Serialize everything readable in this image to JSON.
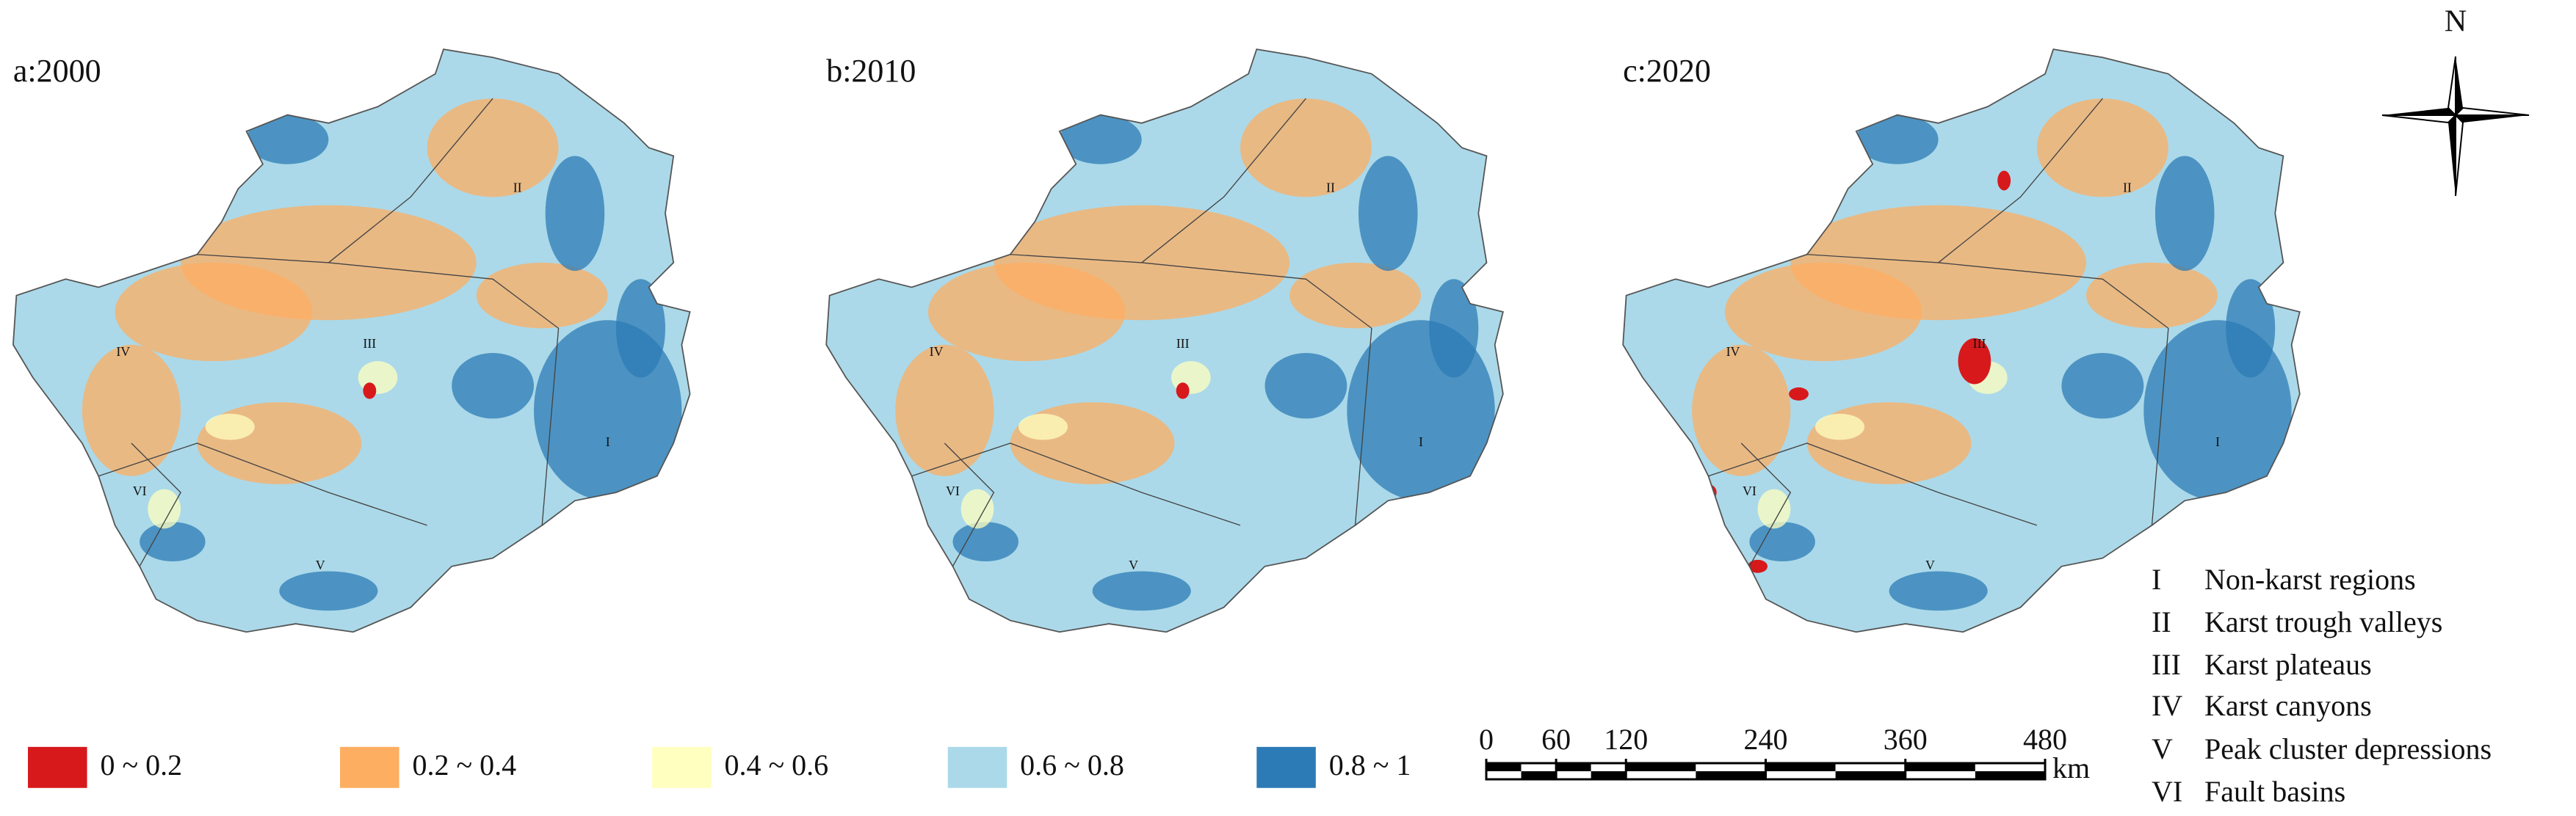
{
  "panels": [
    {
      "label": "a:2000"
    },
    {
      "label": "b:2010"
    },
    {
      "label": "c:2020"
    }
  ],
  "map_labels": [
    "I",
    "II",
    "III",
    "IV",
    "V",
    "VI"
  ],
  "legend": [
    {
      "label": "0 ~ 0.2",
      "color": "#d7191c"
    },
    {
      "label": "0.2 ~ 0.4",
      "color": "#fdae61"
    },
    {
      "label": "0.4 ~ 0.6",
      "color": "#ffffbf"
    },
    {
      "label": "0.6 ~ 0.8",
      "color": "#abd9e9"
    },
    {
      "label": "0.8 ~ 1",
      "color": "#2c7bb6"
    }
  ],
  "scale_bar": {
    "ticks": [
      0,
      60,
      120,
      240,
      360,
      480
    ],
    "unit": "km"
  },
  "north": "N",
  "regions": [
    {
      "code": "I",
      "name": "Non-karst regions"
    },
    {
      "code": "II",
      "name": "Karst trough valleys"
    },
    {
      "code": "III",
      "name": "Karst plateaus"
    },
    {
      "code": "IV",
      "name": "Karst canyons"
    },
    {
      "code": "V",
      "name": "Peak cluster depressions"
    },
    {
      "code": "VI",
      "name": "Fault basins"
    }
  ]
}
